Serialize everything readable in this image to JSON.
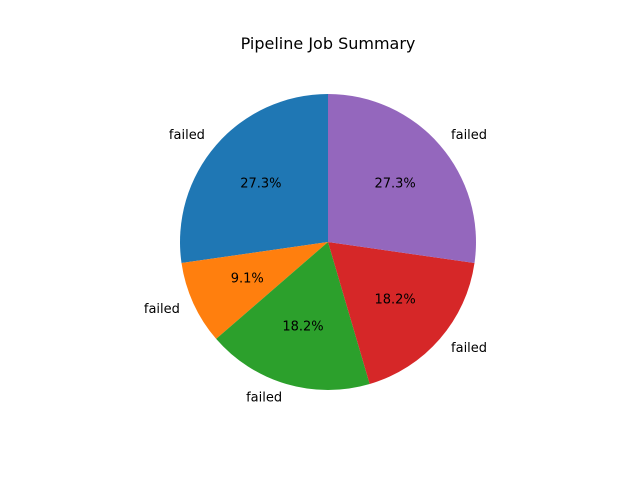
{
  "chart_data": {
    "type": "pie",
    "title": "Pipeline Job Summary",
    "start_angle_deg": 90,
    "direction": "counterclockwise",
    "slices": [
      {
        "label": "failed",
        "value": 27.3,
        "pct_label": "27.3%",
        "color": "#1f77b4"
      },
      {
        "label": "failed",
        "value": 9.1,
        "pct_label": "9.1%",
        "color": "#ff7f0e"
      },
      {
        "label": "failed",
        "value": 18.2,
        "pct_label": "18.2%",
        "color": "#2ca02c"
      },
      {
        "label": "failed",
        "value": 18.2,
        "pct_label": "18.2%",
        "color": "#d62728"
      },
      {
        "label": "failed",
        "value": 27.3,
        "pct_label": "27.3%",
        "color": "#9467bd"
      }
    ]
  }
}
